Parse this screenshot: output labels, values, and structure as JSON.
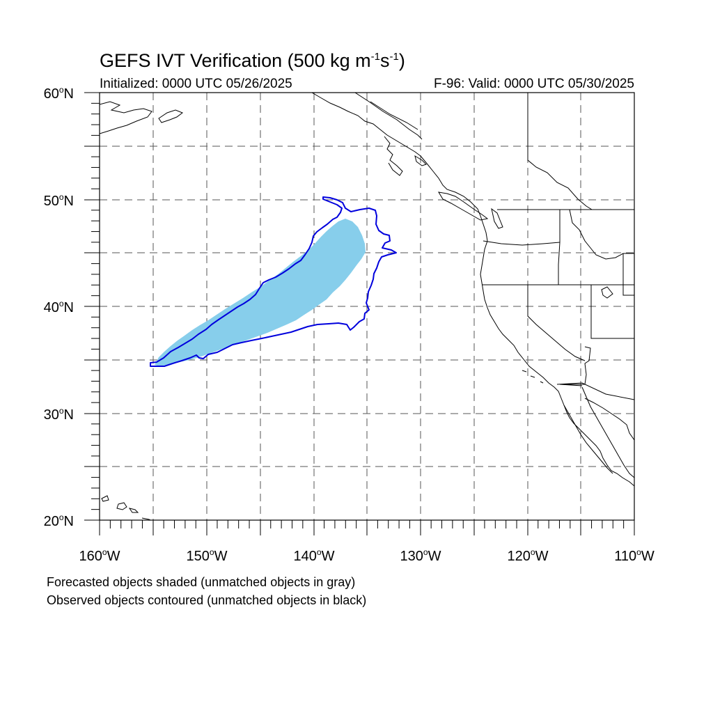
{
  "title": {
    "text": "GEFS IVT Verification (500 kg m",
    "exp1": "-1",
    "mid": "s",
    "exp2": "-1",
    "end": ")"
  },
  "initialized": "Initialized: 0000 UTC 05/26/2025",
  "valid": "F-96: Valid: 0000 UTC 05/30/2025",
  "lat_labels": [
    "60",
    "50",
    "40",
    "30",
    "20"
  ],
  "lat_suffix": "N",
  "lon_labels": [
    "160",
    "150",
    "140",
    "130",
    "120",
    "110"
  ],
  "lon_suffix": "W",
  "notes": [
    "Forecasted objects shaded (unmatched objects in gray)",
    "Observed objects contoured (unmatched objects in black)"
  ],
  "colors": {
    "forecast_fill": "#87ceeb",
    "observed_contour": "#0000dd",
    "coastline": "#000000",
    "grid": "#555555"
  },
  "map": {
    "lon_range": [
      -160,
      -110
    ],
    "lat_range": [
      20,
      60
    ],
    "grid_spacing_deg": 5
  }
}
